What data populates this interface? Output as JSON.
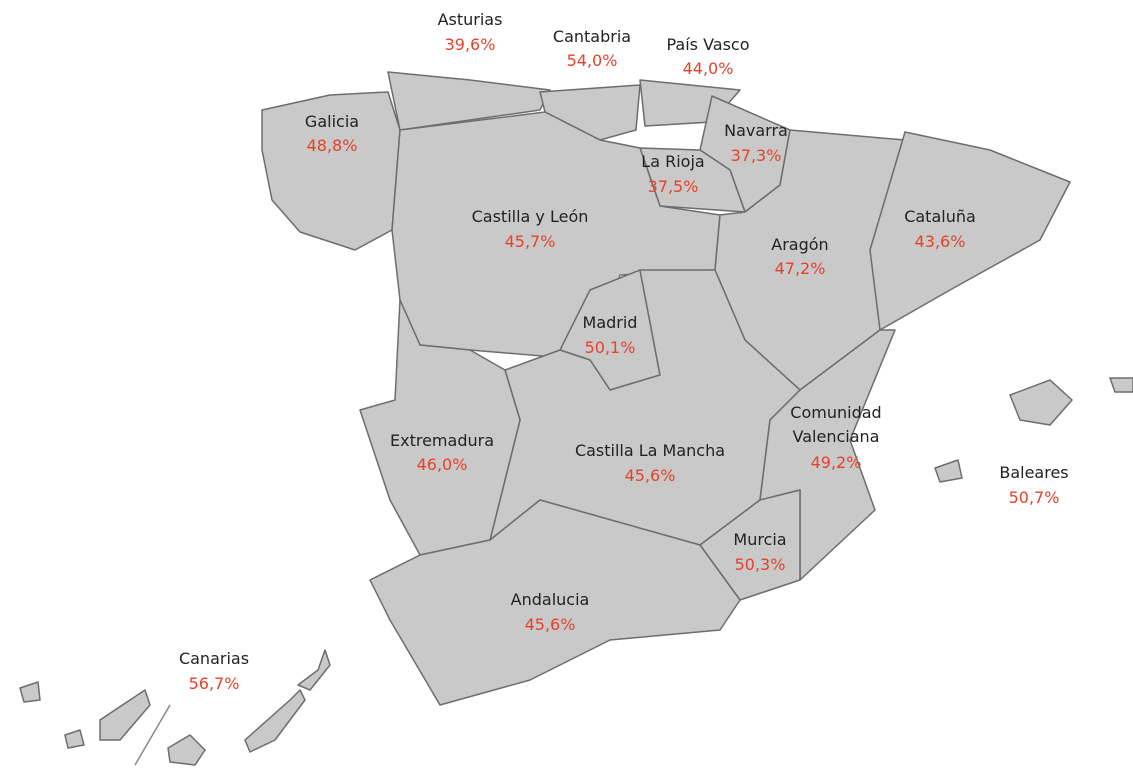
{
  "regions": [
    {
      "name": "Asturias",
      "value": "39,6%"
    },
    {
      "name": "Cantabria",
      "value": "54,0%"
    },
    {
      "name": "País Vasco",
      "value": "44,0%"
    },
    {
      "name": "Galicia",
      "value": "48,8%"
    },
    {
      "name": "Navarra",
      "value": "37,3%"
    },
    {
      "name": "La Rioja",
      "value": "37,5%"
    },
    {
      "name": "Castilla y León",
      "value": "45,7%"
    },
    {
      "name": "Cataluña",
      "value": "43,6%"
    },
    {
      "name": "Aragón",
      "value": "47,2%"
    },
    {
      "name": "Madrid",
      "value": "50,1%"
    },
    {
      "name": [
        "Comunidad",
        "Valenciana"
      ],
      "value": "49,2%"
    },
    {
      "name": "Extremadura",
      "value": "46,0%"
    },
    {
      "name": "Castilla La Mancha",
      "value": "45,6%"
    },
    {
      "name": "Baleares",
      "value": "50,7%"
    },
    {
      "name": "Murcia",
      "value": "50,3%"
    },
    {
      "name": "Andalucia",
      "value": "45,6%"
    },
    {
      "name": "Canarias",
      "value": "56,7%"
    }
  ]
}
